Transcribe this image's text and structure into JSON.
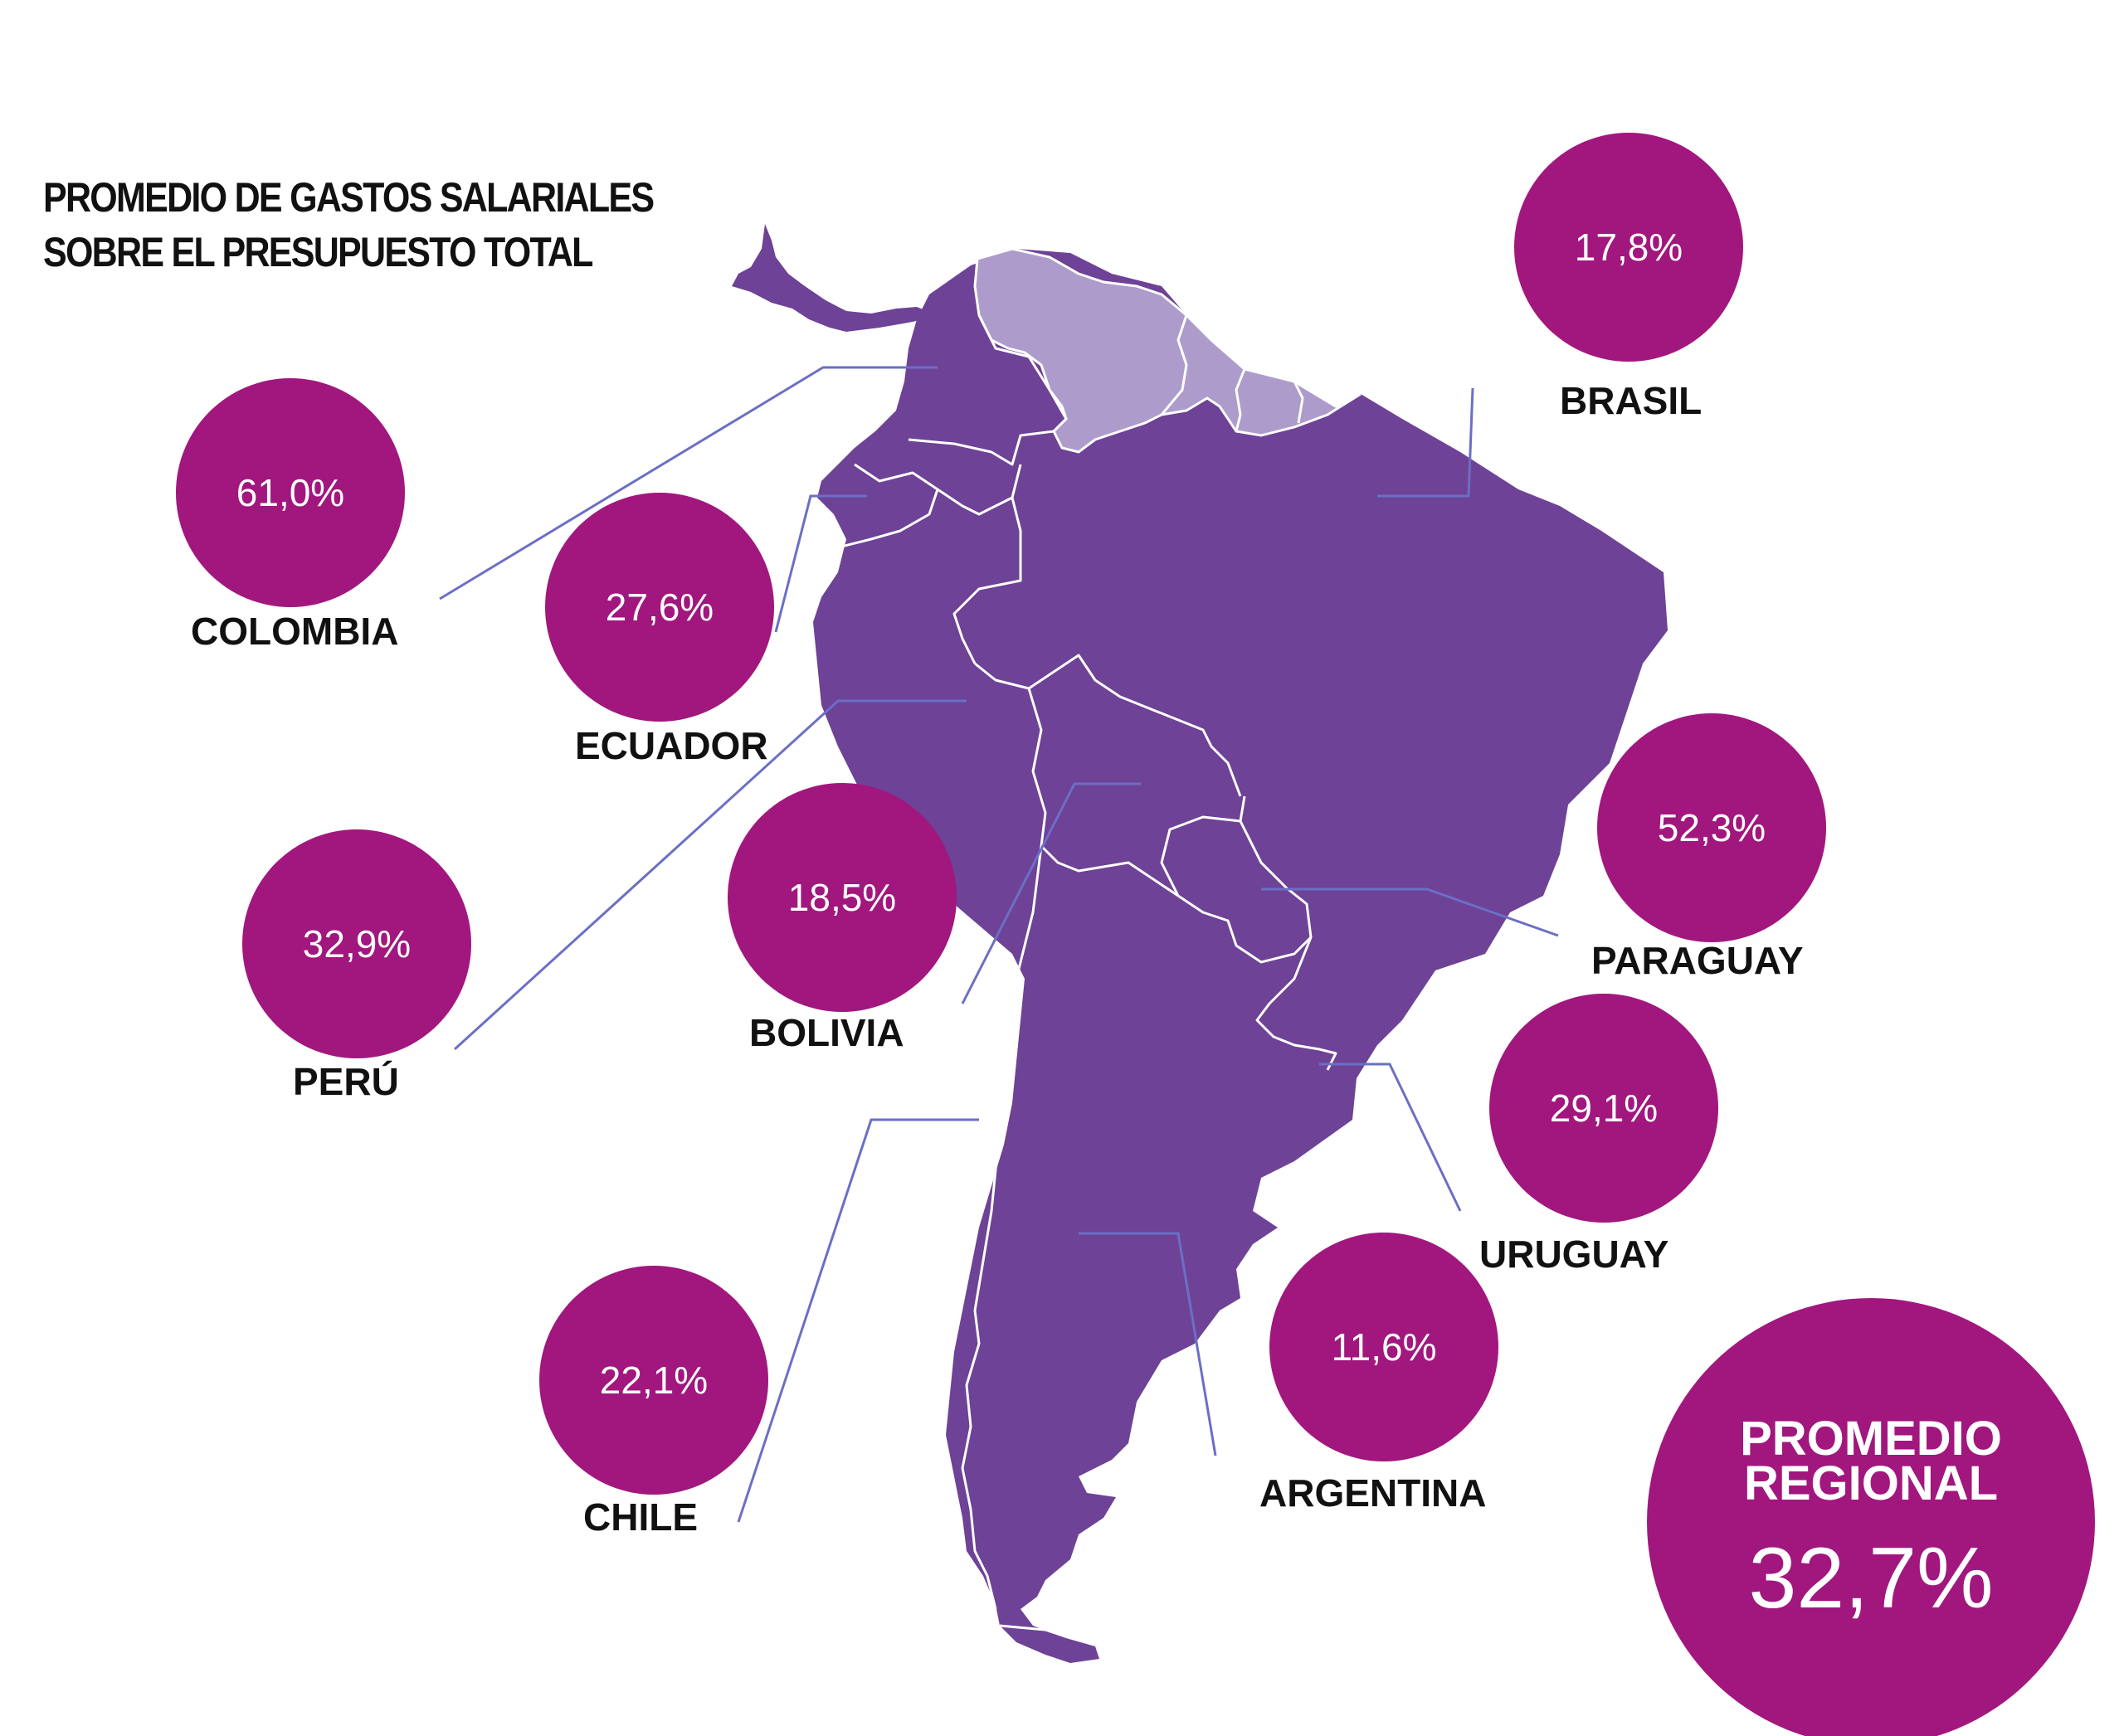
{
  "title": {
    "line1": "PROMEDIO DE GASTOS SALARIALES",
    "line2": "SOBRE EL PRESUPUESTO TOTAL"
  },
  "colors": {
    "bubble": "#a1177e",
    "land_main": "#6e4296",
    "land_secondary": "#ad9ccb",
    "border_line": "#ffffff",
    "leader_line": "#6b6fc6"
  },
  "countries": [
    {
      "id": "brasil",
      "name": "BRASIL",
      "value": "17,8%"
    },
    {
      "id": "colombia",
      "name": "COLOMBIA",
      "value": "61,0%"
    },
    {
      "id": "ecuador",
      "name": "ECUADOR",
      "value": "27,6%"
    },
    {
      "id": "peru",
      "name": "PERÚ",
      "value": "32,9%"
    },
    {
      "id": "bolivia",
      "name": "BOLIVIA",
      "value": "18,5%"
    },
    {
      "id": "paraguay",
      "name": "PARAGUAY",
      "value": "52,3%"
    },
    {
      "id": "uruguay",
      "name": "URUGUAY",
      "value": "29,1%"
    },
    {
      "id": "chile",
      "name": "CHILE",
      "value": "22,1%"
    },
    {
      "id": "argentina",
      "name": "ARGENTINA",
      "value": "11,6%"
    }
  ],
  "regional": {
    "label": "PROMEDIO\nREGIONAL",
    "value": "32,7%"
  }
}
